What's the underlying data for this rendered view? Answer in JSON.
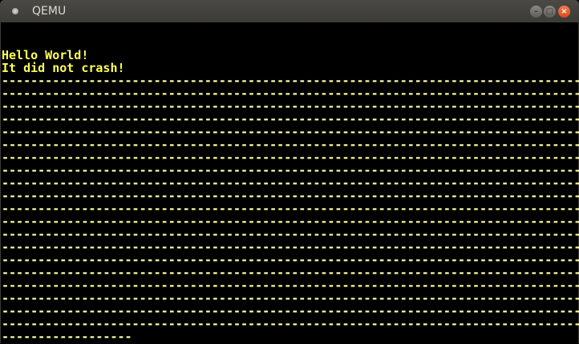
{
  "window": {
    "title": "QEMU",
    "buttons": [
      "minimize",
      "maximize",
      "close"
    ]
  },
  "colors": {
    "text": "#ffff55",
    "background": "#000000"
  },
  "console": {
    "lines": [
      "",
      "",
      "Hello World!",
      "It did not crash!",
      "--------------------------------------------------------------------------------",
      "--------------------------------------------------------------------------------",
      "--------------------------------------------------------------------------------",
      "--------------------------------------------------------------------------------",
      "--------------------------------------------------------------------------------",
      "--------------------------------------------------------------------------------",
      "--------------------------------------------------------------------------------",
      "--------------------------------------------------------------------------------",
      "--------------------------------------------------------------------------------",
      "--------------------------------------------------------------------------------",
      "--------------------------------------------------------------------------------",
      "--------------------------------------------------------------------------------",
      "--------------------------------------------------------------------------------",
      "--------------------------------------------------------------------------------",
      "--------------------------------------------------------------------------------",
      "--------------------------------------------------------------------------------",
      "--------------------------------------------------------------------------------",
      "--------------------------------------------------------------------------------",
      "--------------------------------------------------------------------------------",
      "--------------------------------------------------------------------------------",
      "------------------"
    ]
  }
}
